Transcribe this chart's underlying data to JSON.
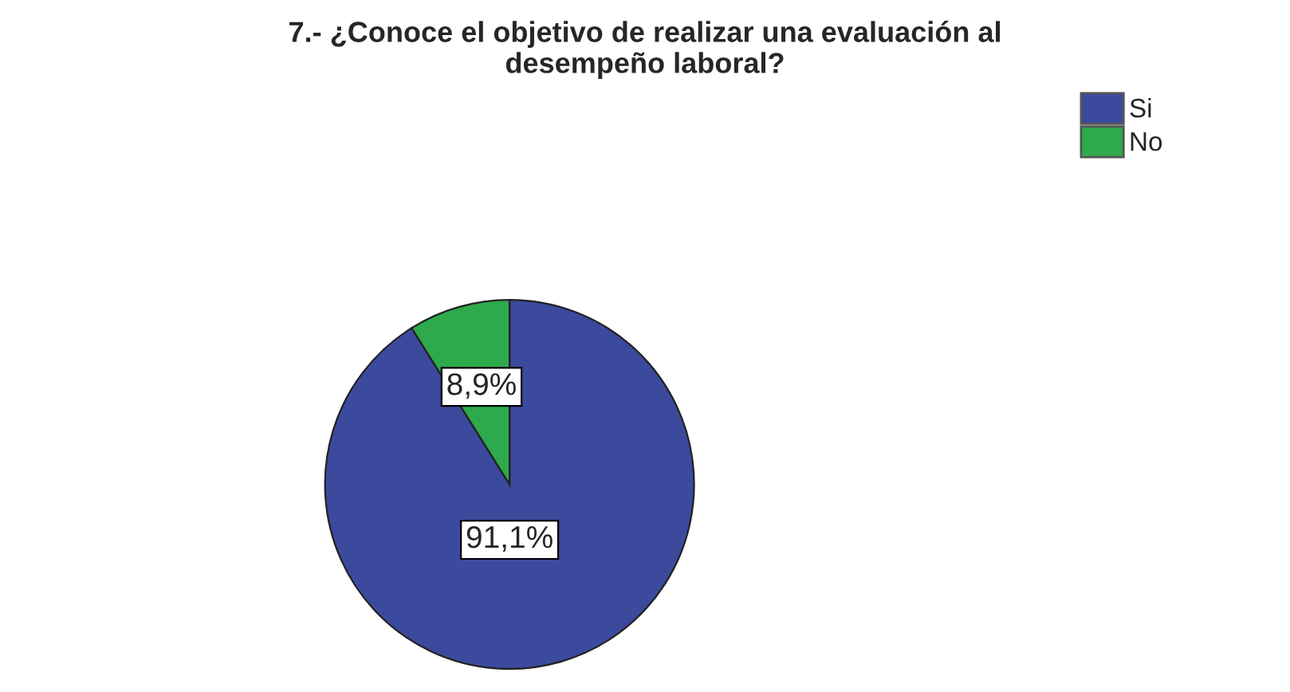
{
  "chart_data": {
    "type": "pie",
    "title": "7.- ¿Conoce el objetivo de realizar una evaluación al\ndesempeño laboral?",
    "categories": [
      "Si",
      "No"
    ],
    "values": [
      91.1,
      8.9
    ],
    "colors": [
      "#3b4a9c",
      "#2eaa4c"
    ],
    "value_labels": [
      "91,1%",
      "8,9%"
    ],
    "legend": "top right"
  }
}
